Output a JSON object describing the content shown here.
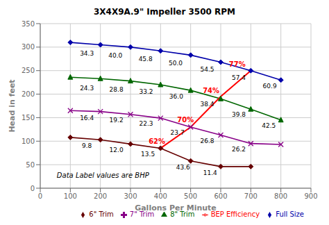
{
  "chart_data": {
    "type": "line",
    "title": "3X4X9A.9\" Impeller 3500 RPM",
    "xlabel": "Gallons Per Minute",
    "ylabel": "Head in feet",
    "xlim": [
      0,
      900
    ],
    "ylim": [
      0,
      350
    ],
    "xticks": [
      0,
      100,
      200,
      300,
      400,
      500,
      600,
      700,
      800,
      900
    ],
    "yticks": [
      0,
      50,
      100,
      150,
      200,
      250,
      300,
      350
    ],
    "grid": true,
    "legend": "lower right",
    "annotations": [
      {
        "text": "Data Label values are BHP",
        "x": 55,
        "y": 22
      }
    ],
    "series": [
      {
        "name": "Full Size",
        "color": "#0000AA",
        "marker": "diamond",
        "x": [
          100,
          200,
          300,
          400,
          500,
          600,
          700,
          800
        ],
        "values": [
          310,
          305,
          300,
          292,
          283,
          268,
          250,
          230
        ],
        "annotations": [
          {
            "text": "34.3",
            "x": 155,
            "y": 292
          },
          {
            "text": "40.0",
            "x": 250,
            "y": 287
          },
          {
            "text": "45.8",
            "x": 350,
            "y": 280
          },
          {
            "text": "50.0",
            "x": 450,
            "y": 271
          },
          {
            "text": "54.5",
            "x": 555,
            "y": 257
          },
          {
            "text": "57.4",
            "x": 660,
            "y": 240
          },
          {
            "text": "60.9",
            "x": 763,
            "y": 222
          }
        ]
      },
      {
        "name": "8\" Trim",
        "color": "#006600",
        "marker": "triangle",
        "x": [
          100,
          200,
          300,
          400,
          500,
          600,
          700,
          800
        ],
        "values": [
          236,
          233,
          228,
          220,
          208,
          190,
          168,
          145
        ],
        "annotations": [
          {
            "text": "24.3",
            "x": 155,
            "y": 218
          },
          {
            "text": "28.8",
            "x": 253,
            "y": 215
          },
          {
            "text": "33.2",
            "x": 352,
            "y": 210
          },
          {
            "text": "36.0",
            "x": 452,
            "y": 200
          },
          {
            "text": "38.4",
            "x": 555,
            "y": 183
          },
          {
            "text": "39.8",
            "x": 660,
            "y": 161
          },
          {
            "text": "42.5",
            "x": 760,
            "y": 138
          }
        ]
      },
      {
        "name": "7\" Trim",
        "color": "#880088",
        "marker": "x",
        "x": [
          100,
          200,
          300,
          400,
          500,
          600,
          700,
          800
        ],
        "values": [
          165,
          163,
          157,
          149,
          130,
          113,
          95,
          93
        ],
        "annotations": [
          {
            "text": "16.4",
            "x": 155,
            "y": 154
          },
          {
            "text": "19.2",
            "x": 253,
            "y": 150
          },
          {
            "text": "22.3",
            "x": 352,
            "y": 143
          },
          {
            "text": "23.7",
            "x": 456,
            "y": 123
          },
          {
            "text": "26.8",
            "x": 555,
            "y": 106
          },
          {
            "text": "26.2",
            "x": 660,
            "y": 87
          }
        ]
      },
      {
        "name": "6\" Trim",
        "color": "#660000",
        "marker": "diamond",
        "x": [
          100,
          200,
          300,
          400,
          500,
          600,
          700
        ],
        "values": [
          108,
          103,
          94,
          85,
          58,
          46,
          46
        ],
        "annotations": [
          {
            "text": "9.8",
            "x": 155,
            "y": 95
          },
          {
            "text": "12.0",
            "x": 253,
            "y": 86
          },
          {
            "text": "13.5",
            "x": 358,
            "y": 78
          },
          {
            "text": "43.6",
            "x": 475,
            "y": 50
          },
          {
            "text": "11.4",
            "x": 565,
            "y": 38
          }
        ]
      },
      {
        "name": "BEP Efficiency",
        "color": "#FF0000",
        "marker": null,
        "x": [
          400,
          500,
          600,
          700
        ],
        "values": [
          85,
          130,
          195,
          250
        ],
        "annotations": [
          {
            "text": "62%",
            "x": 388,
            "y": 92
          },
          {
            "text": "70%",
            "x": 483,
            "y": 138
          },
          {
            "text": "74%",
            "x": 568,
            "y": 200
          },
          {
            "text": "77%",
            "x": 655,
            "y": 255
          }
        ]
      }
    ]
  }
}
